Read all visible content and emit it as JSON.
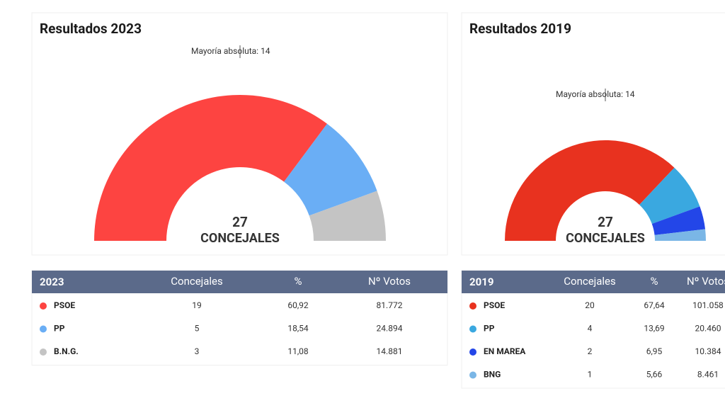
{
  "chart_data": [
    {
      "type": "semi-donut",
      "title": "Resultados 2023",
      "majority": "Mayoría absoluta: 14",
      "total": 27,
      "center_label": "CONCEJALES",
      "table": {
        "headers": [
          "2023",
          "Concejales",
          "%",
          "Nº Votos"
        ],
        "rows": [
          {
            "name": "PSOE",
            "color": "#fd4441",
            "seats": 19,
            "pct": "60,92",
            "votes": "81.772"
          },
          {
            "name": "PP",
            "color": "#6aaef5",
            "seats": 5,
            "pct": "18,54",
            "votes": "24.894"
          },
          {
            "name": "B.N.G.",
            "color": "#c4c4c4",
            "seats": 3,
            "pct": "11,08",
            "votes": "14.881"
          }
        ]
      }
    },
    {
      "type": "semi-donut",
      "title": "Resultados 2019",
      "majority": "Mayoría absoluta: 14",
      "total": 27,
      "center_label": "CONCEJALES",
      "table": {
        "headers": [
          "2019",
          "Concejales",
          "%",
          "Nº Votos"
        ],
        "rows": [
          {
            "name": "PSOE",
            "color": "#e8321f",
            "seats": 20,
            "pct": "67,64",
            "votes": "101.058"
          },
          {
            "name": "PP",
            "color": "#3aa8e0",
            "seats": 4,
            "pct": "13,69",
            "votes": "20.460"
          },
          {
            "name": "EN MAREA",
            "color": "#2346e8",
            "seats": 2,
            "pct": "6,95",
            "votes": "10.384"
          },
          {
            "name": "BNG",
            "color": "#7ab6e6",
            "seats": 1,
            "pct": "5,66",
            "votes": "8.461"
          }
        ]
      }
    }
  ]
}
